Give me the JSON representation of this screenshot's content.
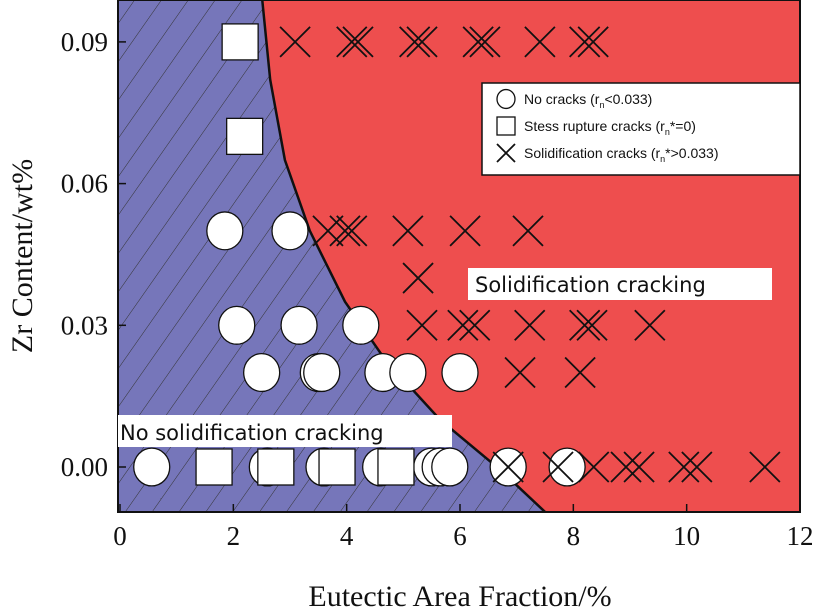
{
  "chart_data": {
    "type": "scatter",
    "xlabel": "Eutectic Area Fraction/%",
    "ylabel": "Zr Content/wt%",
    "xlim": [
      0,
      12
    ],
    "ylim": [
      -0.0095,
      0.099
    ],
    "xticks": [
      "0",
      "2",
      "4",
      "6",
      "8",
      "10",
      "12"
    ],
    "xtick_values": [
      0,
      2,
      4,
      6,
      8,
      10,
      12
    ],
    "yticks": [
      "0.00",
      "0.03",
      "0.06",
      "0.09"
    ],
    "ytick_values": [
      0,
      0.03,
      0.06,
      0.09
    ],
    "grid": false,
    "legend_placement": "top-right",
    "legend": [
      {
        "marker": "circle",
        "label": "No cracks (r",
        "sub": "n",
        "rest": "<0.033)"
      },
      {
        "marker": "square",
        "label": "Stess rupture cracks (r",
        "sub": "n",
        "rest": "*=0)"
      },
      {
        "marker": "cross",
        "label": "Solidification cracks (r",
        "sub": "n",
        "rest": "*>0.033)"
      }
    ],
    "regions": [
      {
        "label": "No solidification cracking",
        "color": "#7676ba",
        "hatched": true
      },
      {
        "label": "Solidification cracking",
        "color": "#ee4e4e",
        "hatched": false
      }
    ],
    "boundary": [
      [
        2.51,
        0.099
      ],
      [
        2.65,
        0.082
      ],
      [
        2.91,
        0.065
      ],
      [
        3.35,
        0.05
      ],
      [
        3.97,
        0.035
      ],
      [
        4.68,
        0.0227
      ],
      [
        5.65,
        0.01
      ],
      [
        6.71,
        -0.0006
      ],
      [
        7.5,
        -0.0095
      ]
    ],
    "series": [
      {
        "name": "No cracks",
        "marker": "circle",
        "points": [
          [
            1.85,
            0.05
          ],
          [
            3.0,
            0.05
          ],
          [
            2.06,
            0.03
          ],
          [
            3.16,
            0.03
          ],
          [
            4.25,
            0.03
          ],
          [
            2.5,
            0.02
          ],
          [
            3.5,
            0.02
          ],
          [
            3.56,
            0.02
          ],
          [
            4.64,
            0.02
          ],
          [
            5.08,
            0.02
          ],
          [
            6.0,
            0.02
          ],
          [
            0.56,
            0
          ],
          [
            2.6,
            0
          ],
          [
            3.6,
            0
          ],
          [
            4.6,
            0
          ],
          [
            5.5,
            0
          ],
          [
            5.65,
            0
          ],
          [
            5.82,
            0
          ],
          [
            6.85,
            0
          ],
          [
            7.89,
            0
          ]
        ]
      },
      {
        "name": "Stess rupture cracks",
        "marker": "square",
        "points": [
          [
            2.12,
            0.09
          ],
          [
            2.2,
            0.07
          ],
          [
            1.66,
            0
          ],
          [
            2.75,
            0
          ],
          [
            3.83,
            0
          ],
          [
            4.87,
            0
          ]
        ]
      },
      {
        "name": "Solidification cracks",
        "marker": "cross",
        "points": [
          [
            3.09,
            0.09
          ],
          [
            4.09,
            0.09
          ],
          [
            4.2,
            0.09
          ],
          [
            5.2,
            0.09
          ],
          [
            5.33,
            0.09
          ],
          [
            6.32,
            0.09
          ],
          [
            6.44,
            0.09
          ],
          [
            7.41,
            0.09
          ],
          [
            8.2,
            0.09
          ],
          [
            8.35,
            0.09
          ],
          [
            3.67,
            0.05
          ],
          [
            3.97,
            0.05
          ],
          [
            4.09,
            0.05
          ],
          [
            5.08,
            0.05
          ],
          [
            6.09,
            0.05
          ],
          [
            7.2,
            0.05
          ],
          [
            5.26,
            0.04
          ],
          [
            5.33,
            0.03
          ],
          [
            6.05,
            0.03
          ],
          [
            6.26,
            0.03
          ],
          [
            7.23,
            0.03
          ],
          [
            8.2,
            0.03
          ],
          [
            8.33,
            0.03
          ],
          [
            9.35,
            0.03
          ],
          [
            7.06,
            0.02
          ],
          [
            8.12,
            0.02
          ],
          [
            6.85,
            0
          ],
          [
            7.73,
            0
          ],
          [
            8.36,
            0
          ],
          [
            8.93,
            0
          ],
          [
            9.16,
            0
          ],
          [
            9.95,
            0
          ],
          [
            10.18,
            0
          ],
          [
            11.38,
            0
          ]
        ]
      }
    ]
  }
}
